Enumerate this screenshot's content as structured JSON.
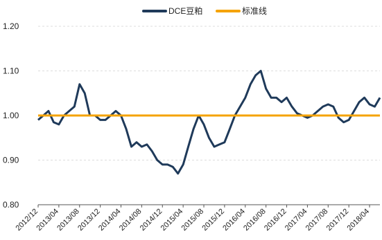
{
  "chart_data": {
    "type": "line",
    "title": "",
    "xlabel": "",
    "ylabel": "",
    "ylim": [
      0.8,
      1.2
    ],
    "grid": "horizontal",
    "legend_position": "top-center",
    "y_ticks": [
      "0.80",
      "0.90",
      "1.00",
      "1.10",
      "1.20"
    ],
    "x_ticks": [
      "2012/12",
      "2013/04",
      "2013/08",
      "2013/12",
      "2014/04",
      "2014/08",
      "2014/12",
      "2015/04",
      "2015/08",
      "2015/12",
      "2016/04",
      "2016/08",
      "2016/12",
      "2017/04",
      "2017/08",
      "2017/12",
      "2018/04"
    ],
    "series": [
      {
        "name": "DCE豆粕",
        "color": "#1f3a5a",
        "points": [
          [
            "2012/12",
            0.99
          ],
          [
            "2013/01",
            1.0
          ],
          [
            "2013/02",
            1.01
          ],
          [
            "2013/03",
            0.985
          ],
          [
            "2013/04",
            0.98
          ],
          [
            "2013/05",
            1.0
          ],
          [
            "2013/06",
            1.01
          ],
          [
            "2013/07",
            1.02
          ],
          [
            "2013/08",
            1.07
          ],
          [
            "2013/09",
            1.05
          ],
          [
            "2013/10",
            1.0
          ],
          [
            "2013/11",
            1.0
          ],
          [
            "2013/12",
            0.99
          ],
          [
            "2014/01",
            0.99
          ],
          [
            "2014/02",
            1.0
          ],
          [
            "2014/03",
            1.01
          ],
          [
            "2014/04",
            1.0
          ],
          [
            "2014/05",
            0.97
          ],
          [
            "2014/06",
            0.93
          ],
          [
            "2014/07",
            0.94
          ],
          [
            "2014/08",
            0.93
          ],
          [
            "2014/09",
            0.935
          ],
          [
            "2014/10",
            0.92
          ],
          [
            "2014/11",
            0.9
          ],
          [
            "2014/12",
            0.89
          ],
          [
            "2015/01",
            0.89
          ],
          [
            "2015/02",
            0.885
          ],
          [
            "2015/03",
            0.87
          ],
          [
            "2015/04",
            0.89
          ],
          [
            "2015/05",
            0.93
          ],
          [
            "2015/06",
            0.97
          ],
          [
            "2015/07",
            1.0
          ],
          [
            "2015/08",
            0.98
          ],
          [
            "2015/09",
            0.95
          ],
          [
            "2015/10",
            0.93
          ],
          [
            "2015/11",
            0.935
          ],
          [
            "2015/12",
            0.94
          ],
          [
            "2016/01",
            0.97
          ],
          [
            "2016/02",
            1.0
          ],
          [
            "2016/03",
            1.02
          ],
          [
            "2016/04",
            1.04
          ],
          [
            "2016/05",
            1.07
          ],
          [
            "2016/06",
            1.09
          ],
          [
            "2016/07",
            1.1
          ],
          [
            "2016/08",
            1.06
          ],
          [
            "2016/09",
            1.04
          ],
          [
            "2016/10",
            1.04
          ],
          [
            "2016/11",
            1.03
          ],
          [
            "2016/12",
            1.04
          ],
          [
            "2017/01",
            1.02
          ],
          [
            "2017/02",
            1.005
          ],
          [
            "2017/03",
            1.0
          ],
          [
            "2017/04",
            0.995
          ],
          [
            "2017/05",
            1.0
          ],
          [
            "2017/06",
            1.01
          ],
          [
            "2017/07",
            1.02
          ],
          [
            "2017/08",
            1.025
          ],
          [
            "2017/09",
            1.02
          ],
          [
            "2017/10",
            0.995
          ],
          [
            "2017/11",
            0.985
          ],
          [
            "2017/12",
            0.99
          ],
          [
            "2018/01",
            1.01
          ],
          [
            "2018/02",
            1.03
          ],
          [
            "2018/03",
            1.04
          ],
          [
            "2018/04",
            1.025
          ],
          [
            "2018/05",
            1.02
          ],
          [
            "2018/06",
            1.04
          ]
        ]
      },
      {
        "name": "标准线",
        "color": "#f5a300",
        "points": [
          [
            "2012/12",
            1.0
          ],
          [
            "2018/06",
            1.0
          ]
        ]
      }
    ]
  }
}
